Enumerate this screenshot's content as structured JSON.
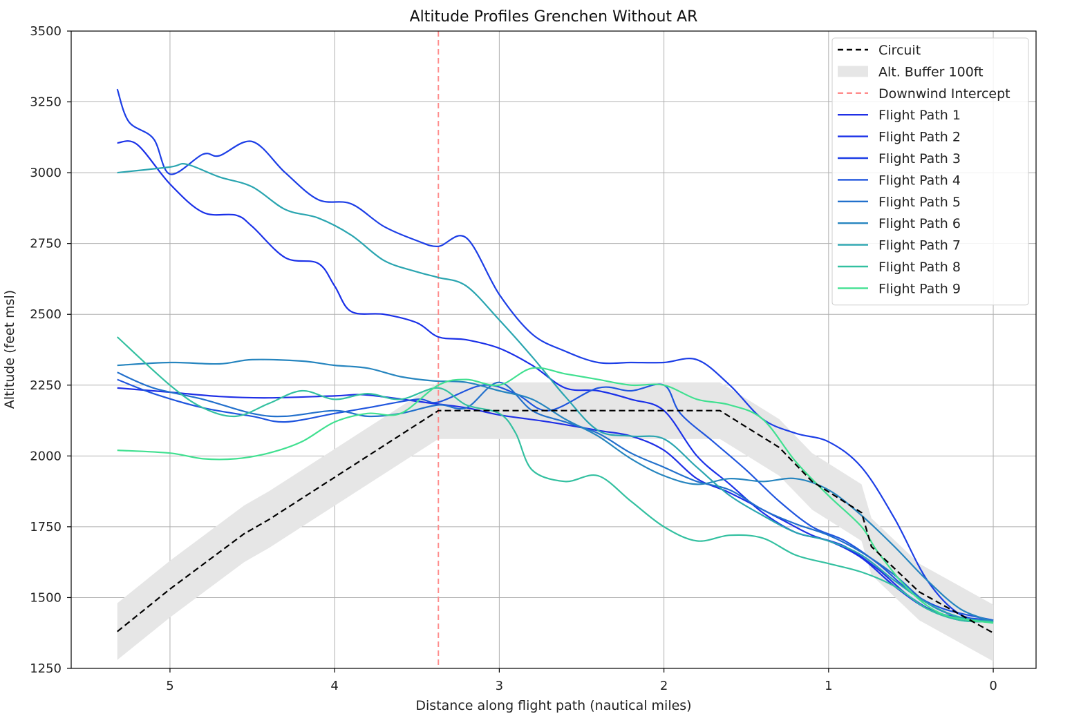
{
  "chart_data": {
    "type": "line",
    "title": "Altitude Profiles Grenchen Without AR",
    "xlabel": "Distance along flight path (nautical miles)",
    "ylabel": "Altitude (feet msl)",
    "xlim": [
      5.6,
      -0.26
    ],
    "ylim": [
      1250,
      3500
    ],
    "x_reversed": true,
    "xticks": [
      5,
      4,
      3,
      2,
      1,
      0
    ],
    "yticks": [
      1250,
      1500,
      1750,
      2000,
      2250,
      2500,
      2750,
      3000,
      3250,
      3500
    ],
    "grid": true,
    "legend_position": "top-right",
    "circuit": {
      "name": "Circuit",
      "color": "#000000",
      "style": "dashed",
      "points": [
        [
          5.32,
          1380
        ],
        [
          5.0,
          1530
        ],
        [
          4.55,
          1725
        ],
        [
          4.4,
          1775
        ],
        [
          3.37,
          2160
        ],
        [
          1.66,
          2160
        ],
        [
          1.3,
          2030
        ],
        [
          1.1,
          1910
        ],
        [
          0.8,
          1800
        ],
        [
          0.74,
          1680
        ],
        [
          0.45,
          1520
        ],
        [
          0.0,
          1375
        ]
      ]
    },
    "buffer": {
      "name": "Alt. Buffer 100ft",
      "color": "#e6e6e6",
      "offset": 100
    },
    "downwind_intercept": {
      "name": "Downwind Intercept",
      "x": 3.37,
      "color": "#ff8c8c"
    },
    "series": [
      {
        "name": "Flight Path 1",
        "color": "#1f2fe6",
        "points": [
          [
            5.32,
            2240
          ],
          [
            5.0,
            2225
          ],
          [
            4.7,
            2210
          ],
          [
            4.4,
            2205
          ],
          [
            4.0,
            2212
          ],
          [
            3.8,
            2215
          ],
          [
            3.4,
            2185
          ],
          [
            3.2,
            2170
          ],
          [
            3.0,
            2145
          ],
          [
            2.7,
            2120
          ],
          [
            2.4,
            2090
          ],
          [
            2.2,
            2070
          ],
          [
            2.0,
            2020
          ],
          [
            1.8,
            1920
          ],
          [
            1.6,
            1870
          ],
          [
            1.3,
            1780
          ],
          [
            1.1,
            1720
          ],
          [
            0.9,
            1680
          ],
          [
            0.7,
            1600
          ],
          [
            0.5,
            1500
          ],
          [
            0.3,
            1440
          ],
          [
            0.0,
            1420
          ]
        ]
      },
      {
        "name": "Flight Path 2",
        "color": "#1a30e8",
        "points": [
          [
            5.32,
            3105
          ],
          [
            5.2,
            3100
          ],
          [
            5.0,
            2960
          ],
          [
            4.8,
            2860
          ],
          [
            4.6,
            2850
          ],
          [
            4.5,
            2810
          ],
          [
            4.3,
            2700
          ],
          [
            4.1,
            2680
          ],
          [
            4.0,
            2600
          ],
          [
            3.9,
            2510
          ],
          [
            3.7,
            2500
          ],
          [
            3.5,
            2470
          ],
          [
            3.37,
            2420
          ],
          [
            3.2,
            2410
          ],
          [
            3.0,
            2380
          ],
          [
            2.8,
            2320
          ],
          [
            2.6,
            2240
          ],
          [
            2.4,
            2230
          ],
          [
            2.2,
            2200
          ],
          [
            2.0,
            2160
          ],
          [
            1.8,
            2000
          ],
          [
            1.6,
            1900
          ],
          [
            1.4,
            1800
          ],
          [
            1.2,
            1730
          ],
          [
            1.0,
            1700
          ],
          [
            0.8,
            1640
          ],
          [
            0.6,
            1540
          ],
          [
            0.4,
            1460
          ],
          [
            0.2,
            1420
          ],
          [
            0.0,
            1415
          ]
        ]
      },
      {
        "name": "Flight Path 3",
        "color": "#1c3ee6",
        "points": [
          [
            5.32,
            3295
          ],
          [
            5.25,
            3180
          ],
          [
            5.1,
            3120
          ],
          [
            5.0,
            2995
          ],
          [
            4.8,
            3065
          ],
          [
            4.7,
            3060
          ],
          [
            4.5,
            3110
          ],
          [
            4.3,
            3000
          ],
          [
            4.1,
            2905
          ],
          [
            3.9,
            2890
          ],
          [
            3.7,
            2810
          ],
          [
            3.5,
            2760
          ],
          [
            3.37,
            2740
          ],
          [
            3.2,
            2770
          ],
          [
            3.0,
            2570
          ],
          [
            2.8,
            2430
          ],
          [
            2.6,
            2370
          ],
          [
            2.4,
            2330
          ],
          [
            2.2,
            2330
          ],
          [
            2.0,
            2330
          ],
          [
            1.8,
            2340
          ],
          [
            1.6,
            2250
          ],
          [
            1.4,
            2130
          ],
          [
            1.2,
            2080
          ],
          [
            1.0,
            2050
          ],
          [
            0.8,
            1960
          ],
          [
            0.6,
            1780
          ],
          [
            0.4,
            1560
          ],
          [
            0.2,
            1440
          ],
          [
            0.0,
            1420
          ]
        ]
      },
      {
        "name": "Flight Path 4",
        "color": "#1f55de",
        "points": [
          [
            5.32,
            2270
          ],
          [
            5.1,
            2220
          ],
          [
            4.8,
            2170
          ],
          [
            4.5,
            2140
          ],
          [
            4.3,
            2120
          ],
          [
            4.0,
            2150
          ],
          [
            3.8,
            2170
          ],
          [
            3.5,
            2200
          ],
          [
            3.37,
            2190
          ],
          [
            3.1,
            2250
          ],
          [
            2.9,
            2220
          ],
          [
            2.7,
            2160
          ],
          [
            2.4,
            2240
          ],
          [
            2.2,
            2230
          ],
          [
            2.0,
            2250
          ],
          [
            1.9,
            2150
          ],
          [
            1.7,
            2050
          ],
          [
            1.5,
            1950
          ],
          [
            1.3,
            1840
          ],
          [
            1.1,
            1750
          ],
          [
            0.9,
            1700
          ],
          [
            0.7,
            1620
          ],
          [
            0.5,
            1520
          ],
          [
            0.3,
            1460
          ],
          [
            0.0,
            1420
          ]
        ]
      },
      {
        "name": "Flight Path 5",
        "color": "#2270cc",
        "points": [
          [
            5.32,
            2295
          ],
          [
            5.1,
            2240
          ],
          [
            4.8,
            2200
          ],
          [
            4.5,
            2150
          ],
          [
            4.3,
            2140
          ],
          [
            4.0,
            2160
          ],
          [
            3.8,
            2140
          ],
          [
            3.6,
            2150
          ],
          [
            3.37,
            2180
          ],
          [
            3.2,
            2170
          ],
          [
            3.0,
            2260
          ],
          [
            2.8,
            2160
          ],
          [
            2.6,
            2120
          ],
          [
            2.4,
            2080
          ],
          [
            2.2,
            2010
          ],
          [
            2.0,
            1960
          ],
          [
            1.8,
            1910
          ],
          [
            1.6,
            1880
          ],
          [
            1.4,
            1810
          ],
          [
            1.2,
            1760
          ],
          [
            1.0,
            1720
          ],
          [
            0.8,
            1660
          ],
          [
            0.6,
            1580
          ],
          [
            0.4,
            1480
          ],
          [
            0.2,
            1430
          ],
          [
            0.0,
            1420
          ]
        ]
      },
      {
        "name": "Flight Path 6",
        "color": "#2685bf",
        "points": [
          [
            5.32,
            2320
          ],
          [
            5.0,
            2330
          ],
          [
            4.7,
            2325
          ],
          [
            4.5,
            2340
          ],
          [
            4.2,
            2335
          ],
          [
            4.0,
            2320
          ],
          [
            3.8,
            2310
          ],
          [
            3.6,
            2280
          ],
          [
            3.4,
            2265
          ],
          [
            3.2,
            2260
          ],
          [
            3.0,
            2230
          ],
          [
            2.8,
            2200
          ],
          [
            2.6,
            2130
          ],
          [
            2.4,
            2070
          ],
          [
            2.2,
            1990
          ],
          [
            2.0,
            1930
          ],
          [
            1.8,
            1900
          ],
          [
            1.6,
            1920
          ],
          [
            1.4,
            1910
          ],
          [
            1.2,
            1920
          ],
          [
            1.0,
            1880
          ],
          [
            0.8,
            1790
          ],
          [
            0.6,
            1680
          ],
          [
            0.4,
            1560
          ],
          [
            0.2,
            1460
          ],
          [
            0.0,
            1415
          ]
        ]
      },
      {
        "name": "Flight Path 7",
        "color": "#2aa5b0",
        "points": [
          [
            5.32,
            3000
          ],
          [
            5.0,
            3020
          ],
          [
            4.9,
            3030
          ],
          [
            4.7,
            2985
          ],
          [
            4.5,
            2950
          ],
          [
            4.3,
            2870
          ],
          [
            4.1,
            2840
          ],
          [
            3.9,
            2780
          ],
          [
            3.7,
            2690
          ],
          [
            3.5,
            2650
          ],
          [
            3.37,
            2630
          ],
          [
            3.2,
            2600
          ],
          [
            3.0,
            2480
          ],
          [
            2.8,
            2350
          ],
          [
            2.6,
            2210
          ],
          [
            2.4,
            2090
          ],
          [
            2.2,
            2070
          ],
          [
            2.0,
            2060
          ],
          [
            1.8,
            1960
          ],
          [
            1.6,
            1860
          ],
          [
            1.4,
            1790
          ],
          [
            1.2,
            1730
          ],
          [
            1.0,
            1700
          ],
          [
            0.8,
            1650
          ],
          [
            0.6,
            1560
          ],
          [
            0.4,
            1480
          ],
          [
            0.2,
            1430
          ],
          [
            0.0,
            1415
          ]
        ]
      },
      {
        "name": "Flight Path 8",
        "color": "#33c0a0",
        "points": [
          [
            5.32,
            2420
          ],
          [
            5.0,
            2250
          ],
          [
            4.8,
            2170
          ],
          [
            4.6,
            2140
          ],
          [
            4.4,
            2185
          ],
          [
            4.2,
            2230
          ],
          [
            4.0,
            2200
          ],
          [
            3.8,
            2220
          ],
          [
            3.6,
            2200
          ],
          [
            3.37,
            2240
          ],
          [
            3.2,
            2180
          ],
          [
            3.0,
            2150
          ],
          [
            2.9,
            2080
          ],
          [
            2.8,
            1950
          ],
          [
            2.6,
            1910
          ],
          [
            2.4,
            1930
          ],
          [
            2.2,
            1840
          ],
          [
            2.0,
            1750
          ],
          [
            1.8,
            1700
          ],
          [
            1.6,
            1720
          ],
          [
            1.4,
            1710
          ],
          [
            1.2,
            1650
          ],
          [
            1.0,
            1620
          ],
          [
            0.8,
            1590
          ],
          [
            0.6,
            1540
          ],
          [
            0.4,
            1460
          ],
          [
            0.2,
            1420
          ],
          [
            0.0,
            1415
          ]
        ]
      },
      {
        "name": "Flight Path 9",
        "color": "#40e090",
        "points": [
          [
            5.32,
            2020
          ],
          [
            5.0,
            2010
          ],
          [
            4.8,
            1990
          ],
          [
            4.6,
            1990
          ],
          [
            4.4,
            2010
          ],
          [
            4.2,
            2050
          ],
          [
            4.0,
            2120
          ],
          [
            3.8,
            2150
          ],
          [
            3.6,
            2150
          ],
          [
            3.37,
            2250
          ],
          [
            3.2,
            2270
          ],
          [
            3.0,
            2250
          ],
          [
            2.8,
            2310
          ],
          [
            2.6,
            2290
          ],
          [
            2.4,
            2270
          ],
          [
            2.2,
            2250
          ],
          [
            2.0,
            2250
          ],
          [
            1.8,
            2200
          ],
          [
            1.6,
            2180
          ],
          [
            1.4,
            2130
          ],
          [
            1.2,
            1980
          ],
          [
            1.0,
            1860
          ],
          [
            0.8,
            1750
          ],
          [
            0.7,
            1660
          ],
          [
            0.5,
            1520
          ],
          [
            0.3,
            1440
          ],
          [
            0.0,
            1410
          ]
        ]
      }
    ]
  }
}
